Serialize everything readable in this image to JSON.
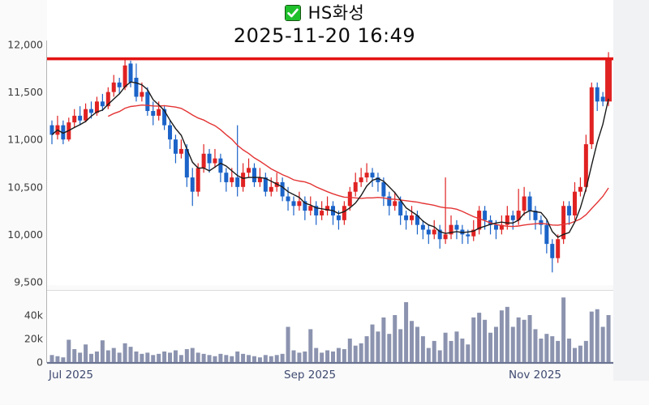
{
  "header": {
    "stock_name": "HS화성",
    "datetime": "2025-11-20 16:49",
    "checkbox_checked": true
  },
  "colors": {
    "up": "#e02222",
    "down": "#1b63c8",
    "ma_short": "#1a1a1a",
    "ma_long": "#e43434",
    "current_price_line": "#e41414",
    "volume_bar": "#8b93af",
    "checkbox_green": "#1fc02c",
    "axis_text": "#3c3c3c",
    "month_text": "#3e4a70",
    "pane_bg": "#ffffff",
    "right_margin_bg": "#f1f2f4",
    "axis_line": "#b5b5b5",
    "volume_baseline": "#6a7391"
  },
  "chart_data": {
    "type": "candlestick",
    "title": "HS화성",
    "subtitle": "2025-11-20 16:49",
    "legend_position": "none",
    "grid": false,
    "price_axis": {
      "min": 9500,
      "max": 12000,
      "ticks": [
        12000,
        11500,
        11000,
        10500,
        10000,
        9500
      ],
      "tick_labels": [
        "12,000",
        "11,500",
        "11,000",
        "10,500",
        "10,000",
        "9,500"
      ]
    },
    "volume_axis": {
      "ticks": [
        {
          "value": 40000,
          "label": "40k"
        },
        {
          "value": 20000,
          "label": "20k"
        },
        {
          "value": 0,
          "label": "0"
        }
      ]
    },
    "x_axis": {
      "labels": [
        "Jul 2025",
        "Sep 2025",
        "Nov 2025"
      ]
    },
    "current_price": 11850,
    "overlays": [
      {
        "name": "short-term moving average",
        "color_key": "ma_short",
        "window": 5
      },
      {
        "name": "long-term moving average",
        "color_key": "ma_long",
        "window": 20,
        "draw_from_index": 10
      }
    ],
    "candles": [
      [
        11150,
        11200,
        10950,
        11050,
        6000
      ],
      [
        11050,
        11250,
        11000,
        11150,
        5000
      ],
      [
        11150,
        11200,
        10950,
        11000,
        4000
      ],
      [
        11000,
        11230,
        10980,
        11180,
        19000
      ],
      [
        11180,
        11320,
        11120,
        11250,
        11000
      ],
      [
        11250,
        11350,
        11150,
        11200,
        8000
      ],
      [
        11200,
        11380,
        11180,
        11320,
        15000
      ],
      [
        11320,
        11400,
        11220,
        11280,
        7000
      ],
      [
        11280,
        11450,
        11250,
        11400,
        9000
      ],
      [
        11400,
        11480,
        11300,
        11350,
        18500
      ],
      [
        11350,
        11550,
        11320,
        11500,
        10000
      ],
      [
        11500,
        11680,
        11450,
        11600,
        12000
      ],
      [
        11600,
        11650,
        11480,
        11550,
        8000
      ],
      [
        11550,
        11860,
        11520,
        11780,
        16000
      ],
      [
        11800,
        11830,
        11550,
        11600,
        13000
      ],
      [
        11650,
        11800,
        11400,
        11450,
        9000
      ],
      [
        11450,
        11600,
        11400,
        11500,
        7000
      ],
      [
        11500,
        11550,
        11250,
        11300,
        8000
      ],
      [
        11300,
        11400,
        11150,
        11250,
        6000
      ],
      [
        11250,
        11400,
        11200,
        11320,
        7000
      ],
      [
        11320,
        11350,
        11100,
        11150,
        9000
      ],
      [
        11150,
        11200,
        10900,
        11000,
        8000
      ],
      [
        11000,
        11050,
        10750,
        10850,
        10000
      ],
      [
        10850,
        11000,
        10800,
        10900,
        6000
      ],
      [
        10900,
        10950,
        10500,
        10600,
        11000
      ],
      [
        10600,
        10700,
        10300,
        10450,
        12000
      ],
      [
        10450,
        10750,
        10400,
        10700,
        8000
      ],
      [
        10700,
        10950,
        10650,
        10850,
        7000
      ],
      [
        10850,
        10900,
        10650,
        10750,
        6000
      ],
      [
        10750,
        10900,
        10700,
        10800,
        5000
      ],
      [
        10800,
        10850,
        10550,
        10650,
        7000
      ],
      [
        10650,
        10700,
        10450,
        10550,
        6000
      ],
      [
        10550,
        10700,
        10500,
        10600,
        5000
      ],
      [
        10600,
        11150,
        10400,
        10500,
        9000
      ],
      [
        10500,
        10750,
        10450,
        10650,
        7000
      ],
      [
        10650,
        10800,
        10600,
        10700,
        6000
      ],
      [
        10700,
        10750,
        10500,
        10550,
        5000
      ],
      [
        10550,
        10700,
        10500,
        10600,
        4000
      ],
      [
        10600,
        10650,
        10400,
        10450,
        6000
      ],
      [
        10450,
        10600,
        10400,
        10500,
        5000
      ],
      [
        10500,
        10650,
        10450,
        10550,
        6000
      ],
      [
        10550,
        10600,
        10350,
        10400,
        7000
      ],
      [
        10400,
        10500,
        10250,
        10350,
        30000
      ],
      [
        10350,
        10400,
        10200,
        10300,
        10000
      ],
      [
        10300,
        10450,
        10250,
        10350,
        8000
      ],
      [
        10350,
        10400,
        10150,
        10250,
        9000
      ],
      [
        10250,
        10400,
        10200,
        10300,
        28000
      ],
      [
        10300,
        10350,
        10100,
        10200,
        12000
      ],
      [
        10200,
        10350,
        10150,
        10250,
        8000
      ],
      [
        10250,
        10400,
        10200,
        10300,
        10000
      ],
      [
        10300,
        10350,
        10100,
        10200,
        9000
      ],
      [
        10200,
        10250,
        10050,
        10150,
        12000
      ],
      [
        10150,
        10350,
        10100,
        10300,
        11000
      ],
      [
        10300,
        10500,
        10250,
        10450,
        20000
      ],
      [
        10450,
        10650,
        10400,
        10550,
        14000
      ],
      [
        10550,
        10700,
        10500,
        10600,
        16000
      ],
      [
        10600,
        10750,
        10550,
        10650,
        22000
      ],
      [
        10650,
        10700,
        10500,
        10600,
        32000
      ],
      [
        10600,
        10650,
        10450,
        10550,
        26000
      ],
      [
        10550,
        10600,
        10300,
        10400,
        38000
      ],
      [
        10400,
        10450,
        10200,
        10300,
        24000
      ],
      [
        10300,
        10450,
        10250,
        10350,
        40000
      ],
      [
        10350,
        10400,
        10100,
        10200,
        28000
      ],
      [
        10200,
        10250,
        10050,
        10150,
        51000
      ],
      [
        10150,
        10300,
        10100,
        10200,
        35000
      ],
      [
        10200,
        10250,
        10000,
        10100,
        30000
      ],
      [
        10100,
        10150,
        9950,
        10050,
        22000
      ],
      [
        10050,
        10100,
        9900,
        10000,
        12000
      ],
      [
        10000,
        10150,
        9950,
        10050,
        18000
      ],
      [
        10050,
        10100,
        9850,
        9950,
        10000
      ],
      [
        9950,
        10600,
        9900,
        10000,
        25000
      ],
      [
        10000,
        10200,
        9950,
        10100,
        18000
      ],
      [
        10100,
        10150,
        9950,
        10050,
        26000
      ],
      [
        10050,
        10100,
        9900,
        10000,
        20000
      ],
      [
        10000,
        10050,
        9900,
        9980,
        15000
      ],
      [
        9980,
        10150,
        9930,
        10050,
        38000
      ],
      [
        10050,
        10300,
        10000,
        10250,
        42000
      ],
      [
        10250,
        10300,
        10050,
        10150,
        36000
      ],
      [
        10150,
        10200,
        10000,
        10100,
        25000
      ],
      [
        10100,
        10150,
        9950,
        10050,
        30000
      ],
      [
        10050,
        10200,
        10000,
        10100,
        44000
      ],
      [
        10100,
        10300,
        10050,
        10200,
        47000
      ],
      [
        10200,
        10250,
        10050,
        10150,
        30000
      ],
      [
        10150,
        10480,
        10100,
        10250,
        38000
      ],
      [
        10250,
        10500,
        10200,
        10400,
        36000
      ],
      [
        10400,
        10450,
        10150,
        10250,
        40000
      ],
      [
        10250,
        10300,
        10050,
        10150,
        28000
      ],
      [
        10150,
        10200,
        10000,
        10100,
        20000
      ],
      [
        10100,
        10150,
        9800,
        9900,
        24000
      ],
      [
        9900,
        9950,
        9600,
        9750,
        22000
      ],
      [
        9750,
        10000,
        9700,
        9950,
        18000
      ],
      [
        9950,
        10350,
        9900,
        10300,
        55000
      ],
      [
        10300,
        10350,
        10100,
        10200,
        20000
      ],
      [
        10200,
        10550,
        10150,
        10450,
        12000
      ],
      [
        10450,
        10600,
        10400,
        10500,
        14000
      ],
      [
        10500,
        11050,
        10450,
        10950,
        18000
      ],
      [
        10950,
        11600,
        10900,
        11550,
        43000
      ],
      [
        11550,
        11600,
        11300,
        11400,
        45000
      ],
      [
        11450,
        11500,
        11350,
        11400,
        30000
      ],
      [
        11400,
        11920,
        11350,
        11850,
        40000
      ]
    ]
  }
}
